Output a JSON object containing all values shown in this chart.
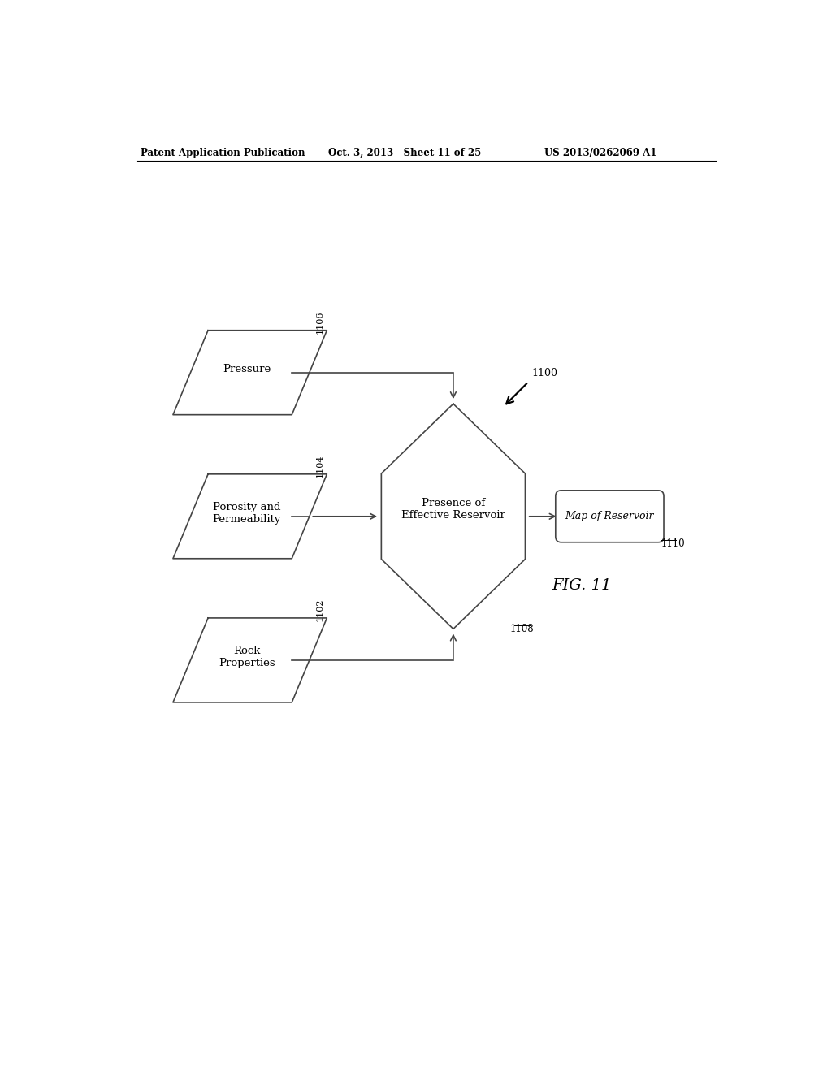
{
  "bg_color": "#ffffff",
  "header_left": "Patent Application Publication",
  "header_mid": "Oct. 3, 2013   Sheet 11 of 25",
  "header_right": "US 2013/0262069 A1",
  "fig_label": "FIG. 11",
  "diagram_label": "1100",
  "boxes": [
    {
      "label": "Pressure",
      "id": "1106"
    },
    {
      "label": "Porosity and\nPermeability",
      "id": "1104"
    },
    {
      "label": "Rock\nProperties",
      "id": "1102"
    }
  ],
  "diamond_label": "Presence of\nEffective Reservoir",
  "diamond_id": "1108",
  "output_label": "Map of Reservoir",
  "output_id": "1110"
}
